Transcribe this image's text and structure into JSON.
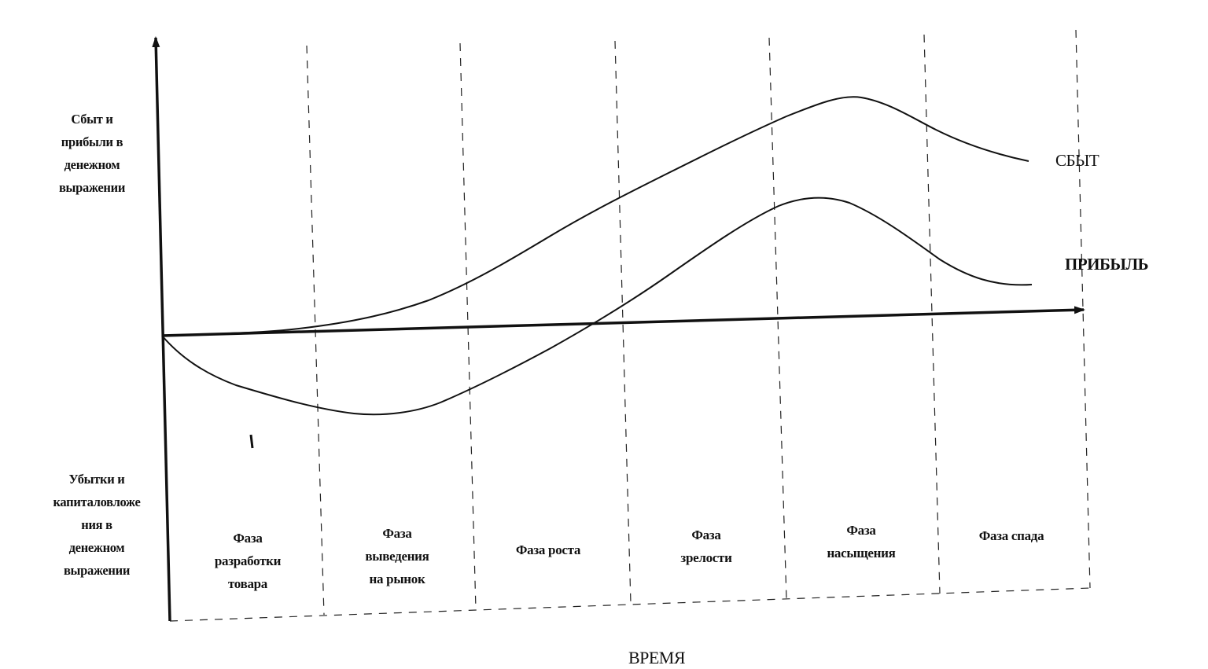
{
  "diagram": {
    "y_axis_positive_label": [
      "Сбыт и",
      "прибыли в",
      "денежном",
      "выражении"
    ],
    "y_axis_negative_label": [
      "Убытки и",
      "капиталовложе",
      "ния в",
      "денежном",
      "выражении"
    ],
    "x_axis_label": "ВРЕМЯ",
    "series": [
      {
        "name": "СБЫТ"
      },
      {
        "name": "ПРИБЫЛЬ"
      }
    ],
    "phases": [
      [
        "Фаза",
        "разработки",
        "товара"
      ],
      [
        "Фаза",
        "выведения",
        "на рынок"
      ],
      [
        "Фаза роста"
      ],
      [
        "Фаза",
        "зрелости"
      ],
      [
        "Фаза",
        "насыщения"
      ],
      [
        "Фаза спада"
      ]
    ],
    "colors": {
      "ink": "#111111",
      "background": "#ffffff"
    }
  }
}
